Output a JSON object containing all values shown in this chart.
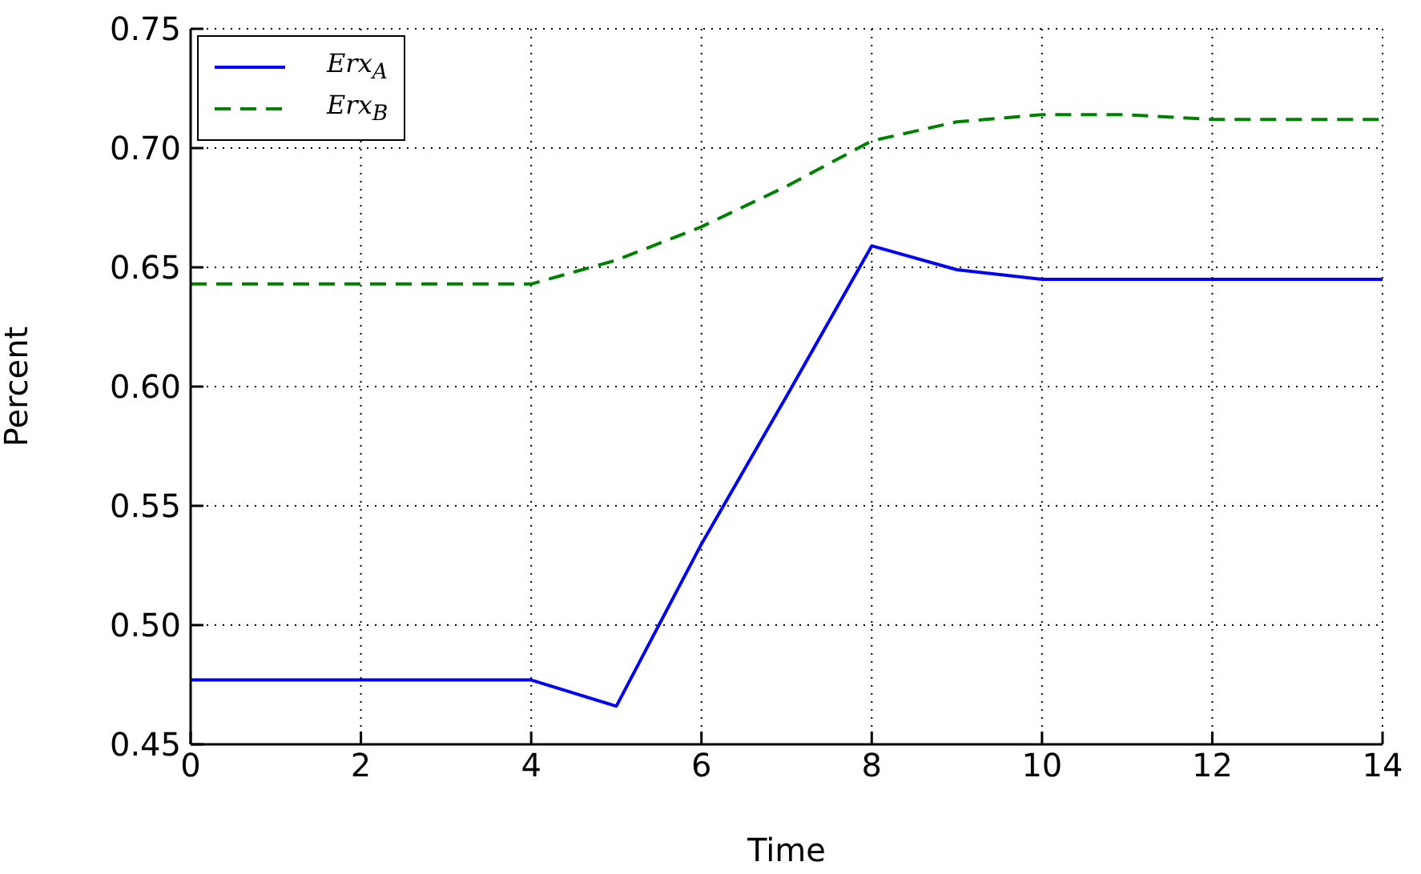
{
  "chart_data": {
    "type": "line",
    "xlabel": "Time",
    "ylabel": "Percent",
    "x": [
      0,
      1,
      2,
      3,
      4,
      5,
      6,
      7,
      8,
      9,
      10,
      11,
      12,
      13,
      14
    ],
    "series": [
      {
        "name": "Erx$_{A}$",
        "color": "#0000ff",
        "line_style": "solid",
        "values": [
          0.477,
          0.477,
          0.477,
          0.477,
          0.477,
          0.466,
          0.534,
          0.596,
          0.659,
          0.649,
          0.645,
          0.645,
          0.645,
          0.645,
          0.645
        ]
      },
      {
        "name": "Erx$_{B}$",
        "color": "#008000",
        "line_style": "dashed",
        "values": [
          0.643,
          0.643,
          0.643,
          0.643,
          0.643,
          0.653,
          0.667,
          0.684,
          0.703,
          0.711,
          0.714,
          0.714,
          0.712,
          0.712,
          0.712
        ]
      }
    ],
    "xlim": [
      0,
      14
    ],
    "xticks": [
      0,
      2,
      4,
      6,
      8,
      10,
      12,
      14
    ],
    "ylim": [
      0.45,
      0.75
    ],
    "yticks": [
      0.45,
      {
        "value": 0.5,
        "label": "0.50"
      },
      0.55,
      {
        "value": 0.6,
        "label": "0.60"
      },
      0.65,
      {
        "value": 0.7,
        "label": "0.70"
      },
      0.75
    ],
    "grid": true,
    "legend": "top left",
    "marker": "none"
  }
}
